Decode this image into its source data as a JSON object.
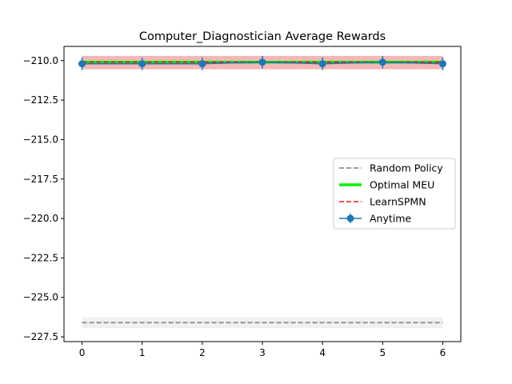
{
  "chart_data": {
    "type": "line",
    "title": "Computer_Diagnostician Average Rewards",
    "xlabel": "",
    "ylabel": "",
    "xlim": [
      -0.3,
      6.3
    ],
    "ylim": [
      -227.8,
      -209.1
    ],
    "xticks": [
      0,
      1,
      2,
      3,
      4,
      5,
      6
    ],
    "xtick_labels": [
      "0",
      "1",
      "2",
      "3",
      "4",
      "5",
      "6"
    ],
    "yticks": [
      -210.0,
      -212.5,
      -215.0,
      -217.5,
      -220.0,
      -222.5,
      -225.0,
      -227.5
    ],
    "ytick_labels": [
      "−210.0",
      "−212.5",
      "−215.0",
      "−217.5",
      "−220.0",
      "−222.5",
      "−225.0",
      "−227.5"
    ],
    "grid": false,
    "legend_position": "center-right",
    "series": [
      {
        "name": "Random Policy",
        "style": "dashed",
        "color": "#808080",
        "x": [
          0,
          6
        ],
        "values": [
          -226.6,
          -226.6
        ],
        "band": [
          -226.95,
          -226.25
        ],
        "band_color": "#f0f0f0"
      },
      {
        "name": "Optimal MEU",
        "style": "solid",
        "color": "#00ee00",
        "x": [
          0,
          6
        ],
        "values": [
          -210.1,
          -210.1
        ]
      },
      {
        "name": "LearnSPMN",
        "style": "dashed",
        "color": "#e31a1c",
        "x": [
          0,
          6
        ],
        "values": [
          -210.1,
          -210.1
        ],
        "band": [
          -210.55,
          -209.7
        ],
        "band_color": "#f4b8b8"
      },
      {
        "name": "Anytime",
        "style": "errorbar",
        "color": "#1f77b4",
        "x": [
          0,
          1,
          2,
          3,
          4,
          5,
          6
        ],
        "values": [
          -210.2,
          -210.2,
          -210.2,
          -210.1,
          -210.2,
          -210.1,
          -210.2
        ],
        "errors": [
          0.4,
          0.4,
          0.4,
          0.4,
          0.4,
          0.4,
          0.4
        ]
      }
    ]
  }
}
